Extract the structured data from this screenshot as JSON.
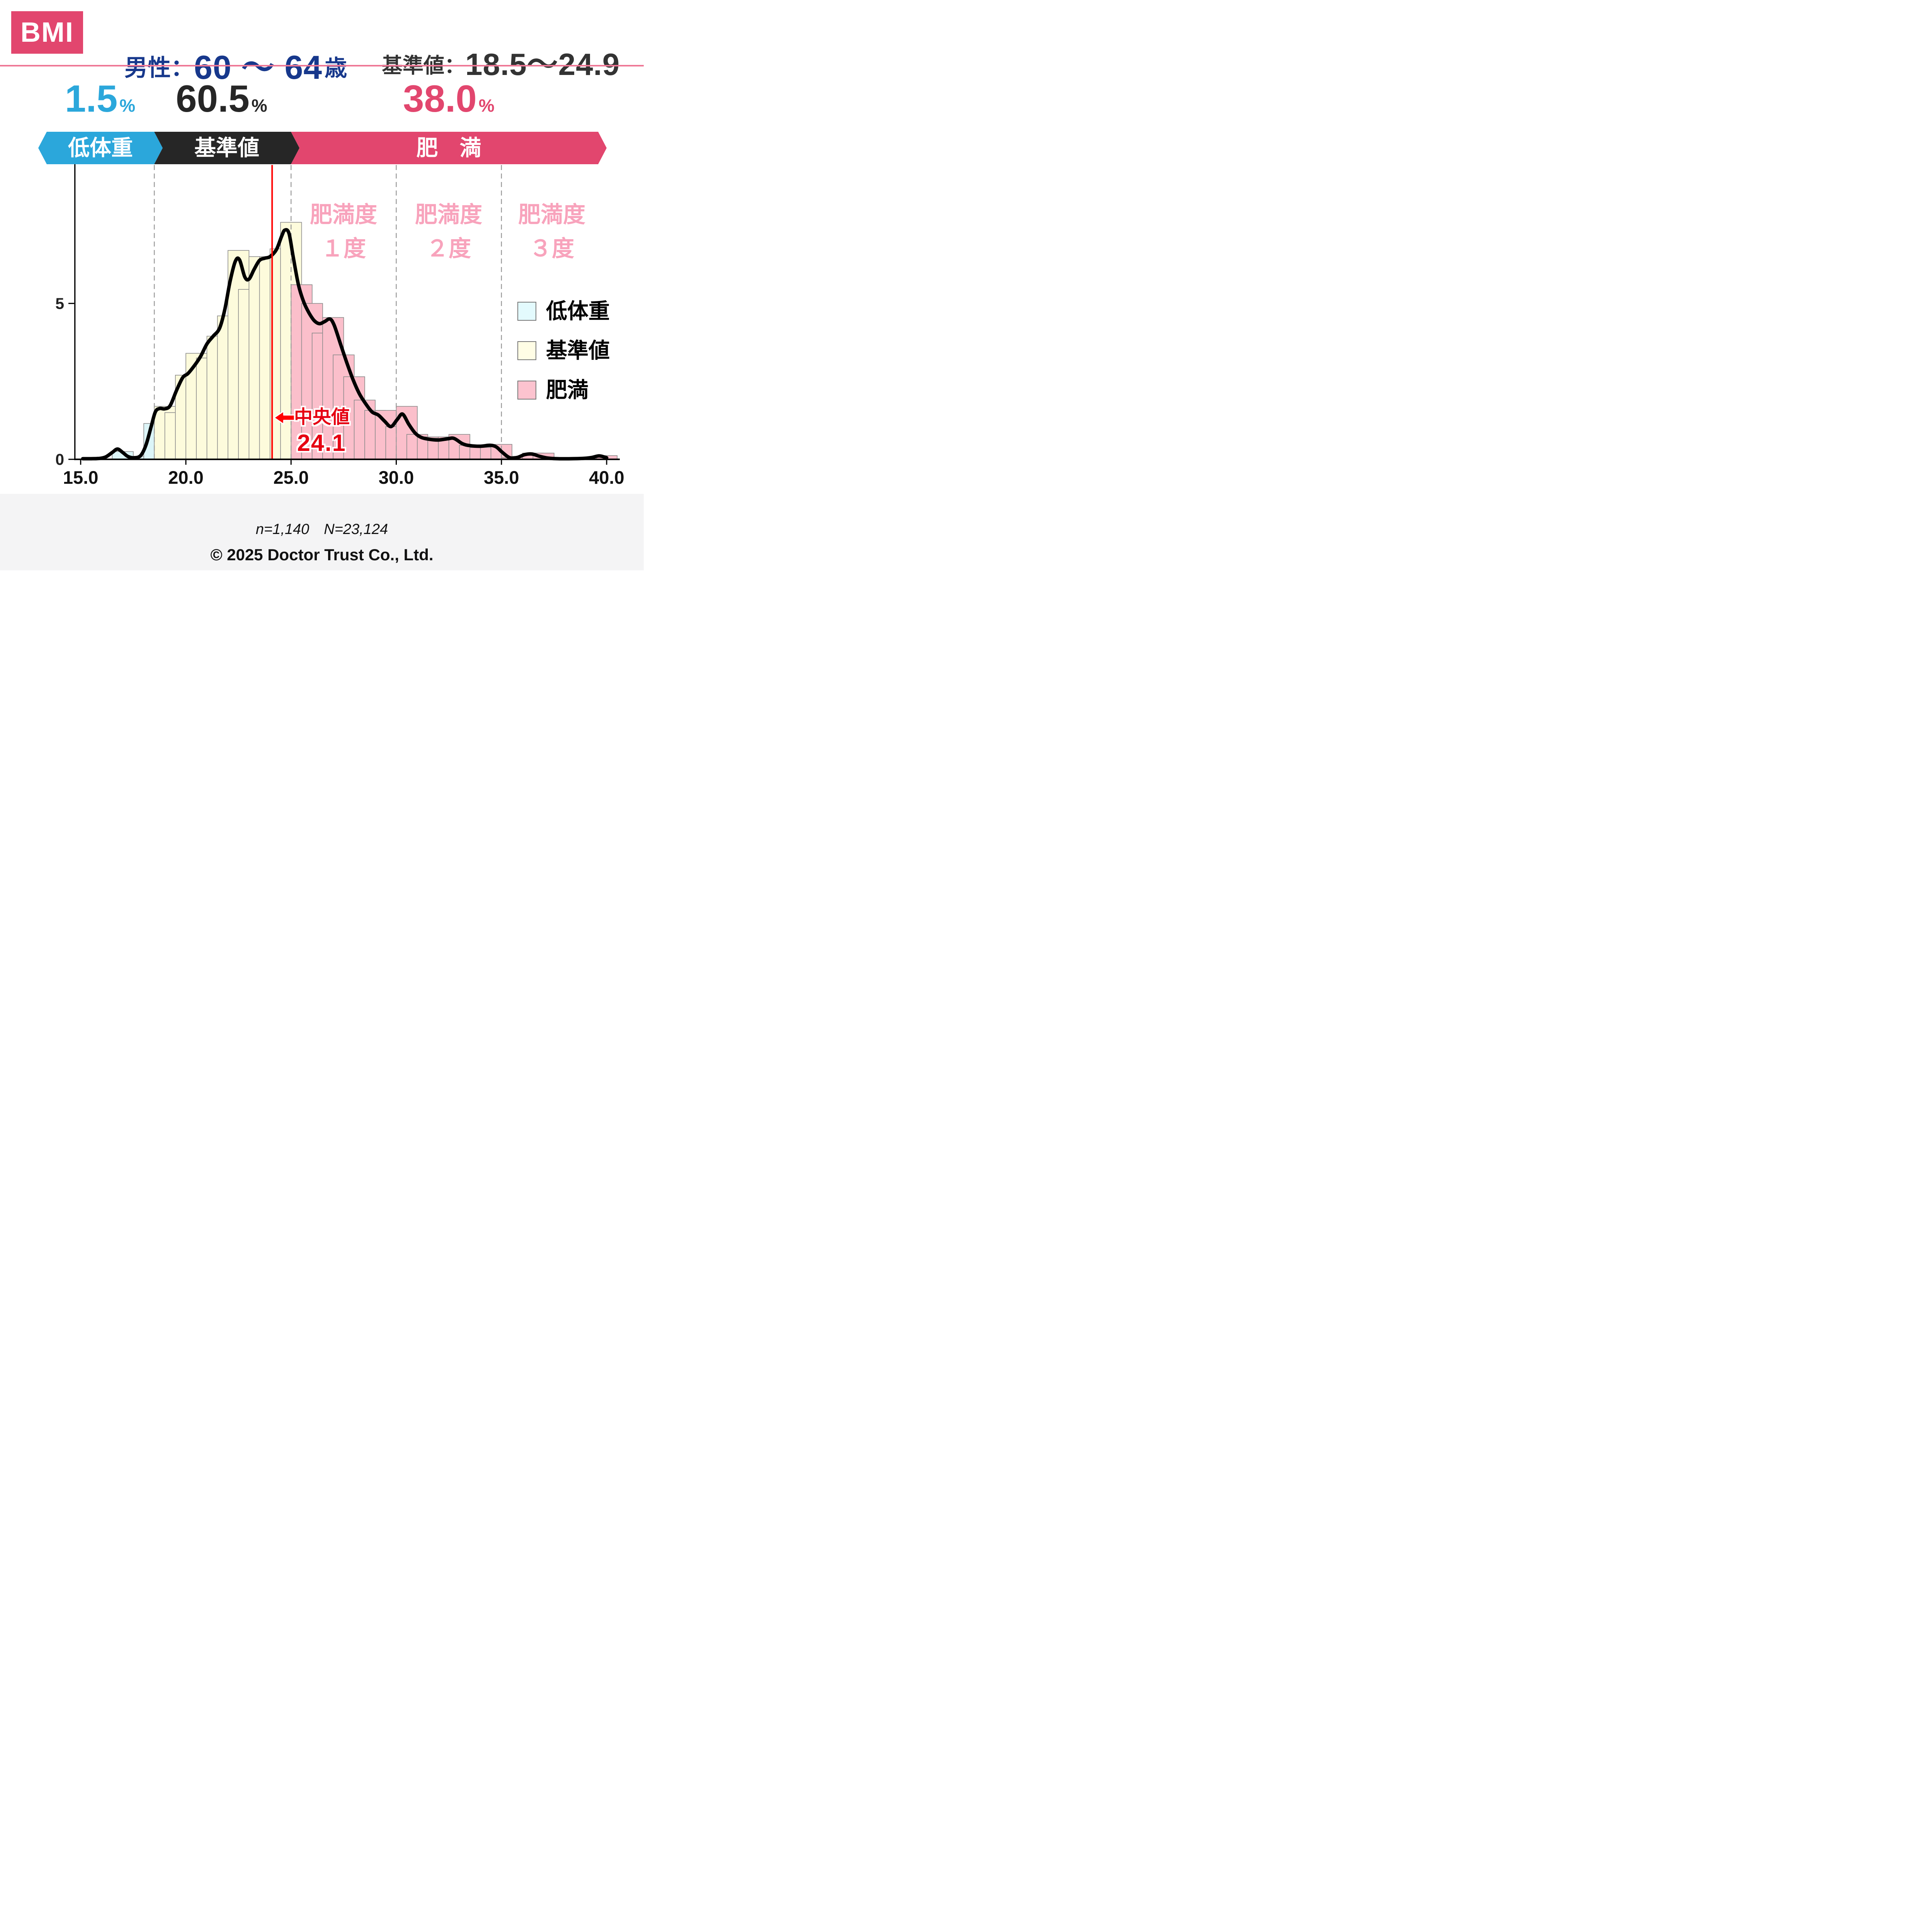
{
  "header": {
    "badge": "BMI",
    "badge_bg": "#E2466E",
    "title_prefix": "男性：",
    "title_value": "60 ～ 64",
    "title_suffix": "歳",
    "title_color": "#17388C",
    "ref_label": "基準値：",
    "ref_value": "18.5～24.9",
    "divider_color": "#EE7795"
  },
  "summary": [
    {
      "id": "low",
      "value": "1.5",
      "sign": "%",
      "label": "低体重",
      "color": "#2BA7DB"
    },
    {
      "id": "normal",
      "value": "60.5",
      "sign": "%",
      "label": "基準値",
      "color": "#262626"
    },
    {
      "id": "obese",
      "value": "38.0",
      "sign": "%",
      "label": "肥　満",
      "color": "#E2466E"
    }
  ],
  "obesity_degrees": {
    "color": "#F8A3BC",
    "items": [
      {
        "line1": "肥満度",
        "line2": "１度"
      },
      {
        "line1": "肥満度",
        "line2": "２度"
      },
      {
        "line1": "肥満度",
        "line2": "３度"
      }
    ]
  },
  "median_annotation": {
    "label": "中央値",
    "value": "24.1",
    "color": "#E60012"
  },
  "legend": [
    {
      "label": "低体重",
      "fill": "#E3FAFD"
    },
    {
      "label": "基準値",
      "fill": "#FFFDE5"
    },
    {
      "label": "肥満",
      "fill": "#FCC3CF"
    }
  ],
  "footer": {
    "bg": "#F4F4F5",
    "sample": "n=1,140　N=23,124",
    "copyright": "© 2025 Doctor Trust Co., Ltd."
  },
  "chart_data": {
    "type": "histogram_with_density",
    "x_range": [
      15,
      40
    ],
    "y_range": [
      0,
      10
    ],
    "x_ticks": [
      "15.0",
      "20.0",
      "25.0",
      "30.0",
      "35.0",
      "40.0"
    ],
    "y_ticks": [
      "0",
      "5",
      "10"
    ],
    "y_unit": "percent of people",
    "bin_width": 0.5,
    "bins": [
      {
        "x": 15.0,
        "v": 0
      },
      {
        "x": 15.5,
        "v": 0
      },
      {
        "x": 16.0,
        "v": 0
      },
      {
        "x": 16.5,
        "v": 0.25
      },
      {
        "x": 17.0,
        "v": 0
      },
      {
        "x": 17.5,
        "v": 0.1
      },
      {
        "x": 18.0,
        "v": 1.15
      },
      {
        "x": 18.5,
        "v": 1.7
      },
      {
        "x": 19.0,
        "v": 1.5
      },
      {
        "x": 19.5,
        "v": 2.7
      },
      {
        "x": 20.0,
        "v": 3.4
      },
      {
        "x": 20.5,
        "v": 3.25
      },
      {
        "x": 21.0,
        "v": 3.95
      },
      {
        "x": 21.5,
        "v": 4.6
      },
      {
        "x": 22.0,
        "v": 6.7
      },
      {
        "x": 22.5,
        "v": 5.45
      },
      {
        "x": 23.0,
        "v": 6.5
      },
      {
        "x": 23.5,
        "v": 6.5
      },
      {
        "x": 24.0,
        "v": 6.75
      },
      {
        "x": 24.5,
        "v": 7.6
      },
      {
        "x": 25.0,
        "v": 5.6
      },
      {
        "x": 25.5,
        "v": 5.0
      },
      {
        "x": 26.0,
        "v": 4.05
      },
      {
        "x": 26.5,
        "v": 4.55
      },
      {
        "x": 27.0,
        "v": 3.35
      },
      {
        "x": 27.5,
        "v": 2.65
      },
      {
        "x": 28.0,
        "v": 1.9
      },
      {
        "x": 28.5,
        "v": 1.57
      },
      {
        "x": 29.0,
        "v": 1.57
      },
      {
        "x": 29.5,
        "v": 1.05
      },
      {
        "x": 30.0,
        "v": 1.7
      },
      {
        "x": 30.5,
        "v": 0.8
      },
      {
        "x": 31.0,
        "v": 0.72
      },
      {
        "x": 31.5,
        "v": 0.68
      },
      {
        "x": 32.0,
        "v": 0.72
      },
      {
        "x": 32.5,
        "v": 0.8
      },
      {
        "x": 33.0,
        "v": 0.45
      },
      {
        "x": 33.5,
        "v": 0.38
      },
      {
        "x": 34.0,
        "v": 0.38
      },
      {
        "x": 34.5,
        "v": 0.48
      },
      {
        "x": 35.0,
        "v": 0.05
      },
      {
        "x": 35.5,
        "v": 0.1
      },
      {
        "x": 36.0,
        "v": 0.2
      },
      {
        "x": 36.5,
        "v": 0.2
      },
      {
        "x": 37.0,
        "v": 0
      },
      {
        "x": 37.5,
        "v": 0
      },
      {
        "x": 38.0,
        "v": 0
      },
      {
        "x": 38.5,
        "v": 0
      },
      {
        "x": 39.0,
        "v": 0
      },
      {
        "x": 39.5,
        "v": 0.12
      }
    ],
    "regions": [
      {
        "label": "低体重",
        "from": 15,
        "to": 18.5,
        "fill": "#DCF5F8"
      },
      {
        "label": "基準値",
        "from": 18.5,
        "to": 25,
        "fill": "#FDFBDC"
      },
      {
        "label": "肥満",
        "from": 25,
        "to": 40.5,
        "fill": "#FBBFCB"
      }
    ],
    "boundaries": [
      18.5,
      25,
      30,
      35
    ],
    "median_x": 24.1,
    "bar_stroke": "#8A8A8A",
    "dash_color": "#9A9A9A",
    "curve_color": "#000000",
    "median_line_color": "#FF0000",
    "density_curve": [
      [
        15.1,
        0.02
      ],
      [
        15.5,
        0.02
      ],
      [
        15.9,
        0.03
      ],
      [
        16.2,
        0.08
      ],
      [
        16.5,
        0.22
      ],
      [
        16.75,
        0.33
      ],
      [
        17.0,
        0.22
      ],
      [
        17.25,
        0.09
      ],
      [
        17.55,
        0.05
      ],
      [
        17.85,
        0.12
      ],
      [
        18.1,
        0.45
      ],
      [
        18.35,
        1.05
      ],
      [
        18.55,
        1.52
      ],
      [
        18.75,
        1.63
      ],
      [
        19.0,
        1.62
      ],
      [
        19.25,
        1.72
      ],
      [
        19.55,
        2.2
      ],
      [
        19.85,
        2.62
      ],
      [
        20.1,
        2.75
      ],
      [
        20.4,
        3.0
      ],
      [
        20.7,
        3.3
      ],
      [
        21.0,
        3.7
      ],
      [
        21.3,
        3.95
      ],
      [
        21.6,
        4.2
      ],
      [
        21.85,
        4.8
      ],
      [
        22.1,
        5.7
      ],
      [
        22.35,
        6.35
      ],
      [
        22.55,
        6.4
      ],
      [
        22.8,
        5.85
      ],
      [
        23.0,
        5.78
      ],
      [
        23.25,
        6.1
      ],
      [
        23.5,
        6.38
      ],
      [
        23.75,
        6.45
      ],
      [
        24.0,
        6.5
      ],
      [
        24.3,
        6.72
      ],
      [
        24.55,
        7.15
      ],
      [
        24.7,
        7.35
      ],
      [
        24.9,
        7.25
      ],
      [
        25.1,
        6.5
      ],
      [
        25.35,
        5.6
      ],
      [
        25.6,
        5.05
      ],
      [
        25.85,
        4.7
      ],
      [
        26.1,
        4.45
      ],
      [
        26.35,
        4.35
      ],
      [
        26.6,
        4.42
      ],
      [
        26.85,
        4.5
      ],
      [
        27.05,
        4.3
      ],
      [
        27.35,
        3.7
      ],
      [
        27.65,
        3.1
      ],
      [
        27.95,
        2.55
      ],
      [
        28.25,
        2.1
      ],
      [
        28.55,
        1.78
      ],
      [
        28.85,
        1.52
      ],
      [
        29.15,
        1.42
      ],
      [
        29.45,
        1.22
      ],
      [
        29.75,
        1.05
      ],
      [
        30.05,
        1.28
      ],
      [
        30.3,
        1.45
      ],
      [
        30.6,
        1.12
      ],
      [
        30.9,
        0.84
      ],
      [
        31.2,
        0.7
      ],
      [
        31.6,
        0.64
      ],
      [
        32.0,
        0.62
      ],
      [
        32.45,
        0.66
      ],
      [
        32.75,
        0.67
      ],
      [
        33.15,
        0.5
      ],
      [
        33.5,
        0.44
      ],
      [
        34.0,
        0.42
      ],
      [
        34.45,
        0.45
      ],
      [
        34.75,
        0.4
      ],
      [
        35.05,
        0.22
      ],
      [
        35.4,
        0.05
      ],
      [
        35.75,
        0.06
      ],
      [
        36.1,
        0.15
      ],
      [
        36.45,
        0.17
      ],
      [
        36.8,
        0.1
      ],
      [
        37.2,
        0.04
      ],
      [
        37.7,
        0.02
      ],
      [
        38.3,
        0.02
      ],
      [
        38.9,
        0.03
      ],
      [
        39.3,
        0.06
      ],
      [
        39.65,
        0.11
      ],
      [
        40.0,
        0.05
      ]
    ]
  }
}
